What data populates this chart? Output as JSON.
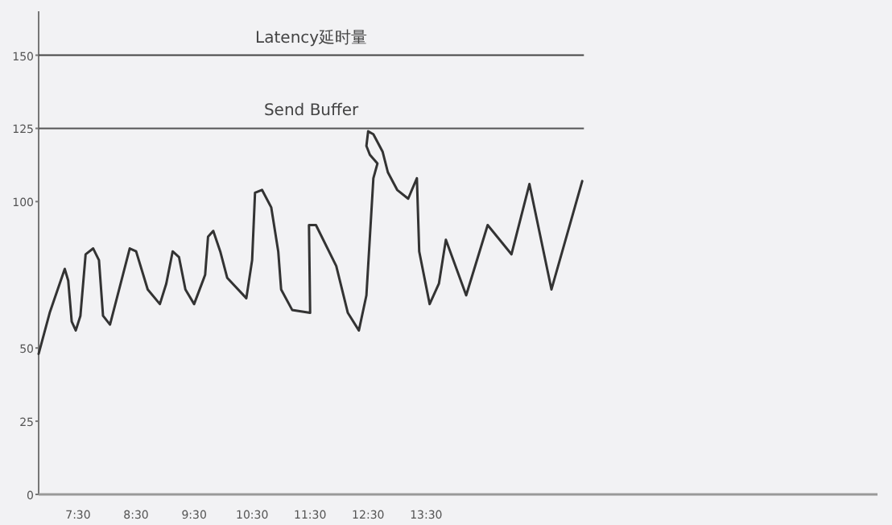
{
  "chart_data": {
    "type": "line",
    "xlim": [
      6.82,
      21.28
    ],
    "ylim": [
      0,
      165
    ],
    "xticks": [
      {
        "value": 7.5,
        "label": "7:30"
      },
      {
        "value": 8.5,
        "label": "8:30"
      },
      {
        "value": 9.5,
        "label": "9:30"
      },
      {
        "value": 10.5,
        "label": "10:30"
      },
      {
        "value": 11.5,
        "label": "11:30"
      },
      {
        "value": 12.5,
        "label": "12:30"
      },
      {
        "value": 13.5,
        "label": "13:30"
      }
    ],
    "yticks": [
      0,
      25,
      50,
      100,
      125,
      150
    ],
    "series": [
      {
        "color": "#333333",
        "x": [
          6.82,
          7.01,
          7.27,
          7.33,
          7.39,
          7.46,
          7.54,
          7.63,
          7.76,
          7.86,
          7.93,
          8.05,
          8.39,
          8.5,
          8.7,
          8.91,
          9.02,
          9.13,
          9.24,
          9.35,
          9.5,
          9.69,
          9.74,
          9.83,
          9.95,
          10.07,
          10.4,
          10.5,
          10.55,
          10.67,
          10.83,
          10.95,
          11.0,
          11.19,
          11.5,
          11.48,
          11.6,
          11.95,
          12.15,
          12.34,
          12.47,
          12.59,
          12.66,
          12.53,
          12.47,
          12.5,
          12.59,
          12.75,
          12.84,
          13.0,
          13.19,
          13.34,
          13.38,
          13.56,
          13.72,
          13.84,
          14.19,
          14.56,
          14.97,
          15.28,
          15.66,
          16.19
        ],
        "values": [
          48,
          62,
          77,
          73,
          59,
          56,
          61,
          82,
          84,
          80,
          61,
          58,
          84,
          83,
          70,
          65,
          72,
          83,
          81,
          70,
          65,
          75,
          88,
          90,
          83,
          74,
          67,
          80,
          103,
          104,
          98,
          83,
          70,
          63,
          62,
          92,
          92,
          78,
          62,
          56,
          68,
          108,
          113,
          116,
          119,
          124,
          123,
          117,
          110,
          104,
          101,
          108,
          83,
          65,
          72,
          87,
          68,
          92,
          82,
          106,
          70,
          107
        ]
      }
    ],
    "ref_lines": [
      {
        "axis": "y",
        "value": 150,
        "label": "Latency延时量",
        "color": "#444444"
      },
      {
        "axis": "y",
        "value": 125,
        "label": "Send Buffer",
        "color": "#555555"
      }
    ]
  }
}
